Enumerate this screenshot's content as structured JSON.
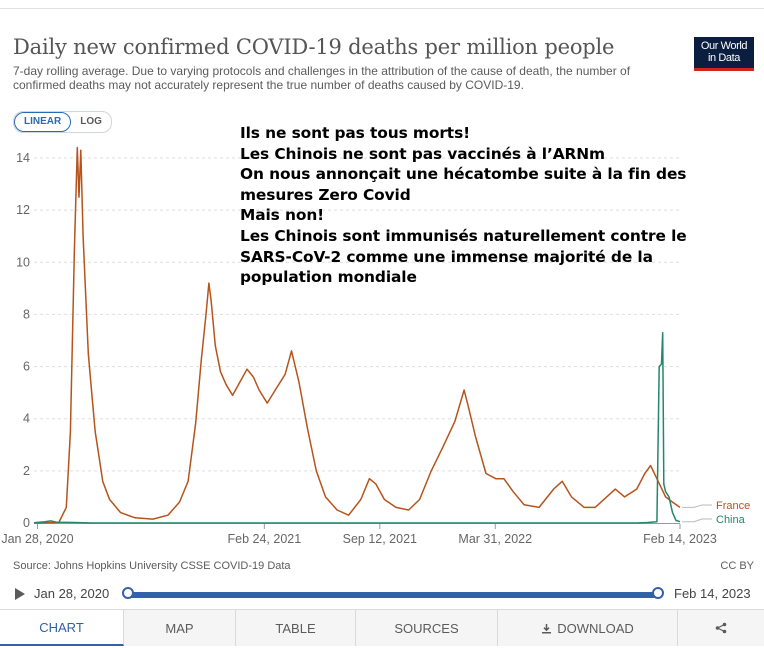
{
  "header": {
    "title": "Daily new confirmed COVID-19 deaths per million people",
    "subtitle": "7-day rolling average. Due to varying protocols and challenges in the attribution of the cause of death, the number of confirmed deaths may not accurately represent the true number of deaths caused by COVID-19.",
    "logo_line1": "Our World",
    "logo_line2": "in Data"
  },
  "scale_toggle": {
    "linear": "LINEAR",
    "log": "LOG",
    "selected": "LINEAR"
  },
  "annotation": [
    "Ils ne sont pas tous morts!",
    "Les Chinois ne sont pas vaccinés à l’ARNm",
    "On nous annonçait une hécatombe suite à la fin des",
    "mesures Zero Covid",
    "Mais non!",
    "Les Chinois sont immunisés naturellement contre le",
    "SARS-CoV-2 comme une immense majorité de la",
    "population mondiale"
  ],
  "chart_data": {
    "type": "line",
    "title": "Daily new confirmed COVID-19 deaths per million people",
    "ylim": [
      0,
      14
    ],
    "y_ticks": [
      0,
      2,
      4,
      6,
      8,
      10,
      12,
      14
    ],
    "xlim": [
      "2020-01-22",
      "2023-02-14"
    ],
    "x_ticks": [
      {
        "date": "2020-01-28",
        "label": "Jan 28, 2020"
      },
      {
        "date": "2021-02-24",
        "label": "Feb 24, 2021"
      },
      {
        "date": "2021-09-12",
        "label": "Sep 12, 2021"
      },
      {
        "date": "2022-03-31",
        "label": "Mar 31, 2022"
      },
      {
        "date": "2023-02-14",
        "label": "Feb 14, 2023"
      }
    ],
    "grid": true,
    "legend": "right-end labels",
    "series": [
      {
        "name": "France",
        "color": "#b5541c",
        "points": [
          [
            "2020-01-22",
            0
          ],
          [
            "2020-03-05",
            0.02
          ],
          [
            "2020-03-18",
            0.6
          ],
          [
            "2020-03-25",
            3.5
          ],
          [
            "2020-04-01",
            10.5
          ],
          [
            "2020-04-06",
            14.4
          ],
          [
            "2020-04-09",
            12.5
          ],
          [
            "2020-04-12",
            14.3
          ],
          [
            "2020-04-16",
            11.0
          ],
          [
            "2020-04-20",
            9.0
          ],
          [
            "2020-04-25",
            6.5
          ],
          [
            "2020-05-01",
            5.0
          ],
          [
            "2020-05-07",
            3.5
          ],
          [
            "2020-05-14",
            2.5
          ],
          [
            "2020-05-20",
            1.6
          ],
          [
            "2020-06-01",
            0.9
          ],
          [
            "2020-06-20",
            0.4
          ],
          [
            "2020-07-15",
            0.2
          ],
          [
            "2020-08-15",
            0.15
          ],
          [
            "2020-09-10",
            0.3
          ],
          [
            "2020-09-30",
            0.8
          ],
          [
            "2020-10-15",
            1.6
          ],
          [
            "2020-10-28",
            3.8
          ],
          [
            "2020-11-07",
            6.3
          ],
          [
            "2020-11-15",
            8.0
          ],
          [
            "2020-11-20",
            9.2
          ],
          [
            "2020-11-24",
            8.5
          ],
          [
            "2020-12-01",
            6.8
          ],
          [
            "2020-12-10",
            5.8
          ],
          [
            "2020-12-20",
            5.3
          ],
          [
            "2020-12-31",
            4.9
          ],
          [
            "2021-01-10",
            5.3
          ],
          [
            "2021-01-25",
            5.9
          ],
          [
            "2021-02-05",
            5.6
          ],
          [
            "2021-02-15",
            5.1
          ],
          [
            "2021-03-01",
            4.6
          ],
          [
            "2021-03-15",
            5.1
          ],
          [
            "2021-04-01",
            5.7
          ],
          [
            "2021-04-12",
            6.6
          ],
          [
            "2021-04-25",
            5.4
          ],
          [
            "2021-05-10",
            3.6
          ],
          [
            "2021-05-25",
            2.0
          ],
          [
            "2021-06-10",
            1.0
          ],
          [
            "2021-06-30",
            0.5
          ],
          [
            "2021-07-20",
            0.3
          ],
          [
            "2021-08-10",
            0.9
          ],
          [
            "2021-08-25",
            1.7
          ],
          [
            "2021-09-05",
            1.5
          ],
          [
            "2021-09-20",
            0.9
          ],
          [
            "2021-10-10",
            0.6
          ],
          [
            "2021-11-01",
            0.5
          ],
          [
            "2021-11-20",
            0.9
          ],
          [
            "2021-12-10",
            2.0
          ],
          [
            "2021-12-30",
            2.9
          ],
          [
            "2022-01-20",
            3.9
          ],
          [
            "2022-02-05",
            5.1
          ],
          [
            "2022-02-12",
            4.5
          ],
          [
            "2022-02-25",
            3.3
          ],
          [
            "2022-03-15",
            1.9
          ],
          [
            "2022-04-01",
            1.7
          ],
          [
            "2022-04-15",
            1.7
          ],
          [
            "2022-05-01",
            1.2
          ],
          [
            "2022-05-20",
            0.7
          ],
          [
            "2022-06-15",
            0.6
          ],
          [
            "2022-07-10",
            1.3
          ],
          [
            "2022-07-25",
            1.6
          ],
          [
            "2022-08-10",
            1.0
          ],
          [
            "2022-09-01",
            0.6
          ],
          [
            "2022-09-20",
            0.6
          ],
          [
            "2022-10-10",
            1.0
          ],
          [
            "2022-10-25",
            1.3
          ],
          [
            "2022-11-10",
            1.0
          ],
          [
            "2022-12-01",
            1.3
          ],
          [
            "2022-12-15",
            1.9
          ],
          [
            "2022-12-25",
            2.2
          ],
          [
            "2023-01-05",
            1.7
          ],
          [
            "2023-01-20",
            1.0
          ],
          [
            "2023-02-01",
            0.8
          ],
          [
            "2023-02-14",
            0.6
          ]
        ]
      },
      {
        "name": "China",
        "color": "#23876b",
        "points": [
          [
            "2020-01-22",
            0.01
          ],
          [
            "2020-02-10",
            0.05
          ],
          [
            "2020-02-20",
            0.08
          ],
          [
            "2020-03-01",
            0.03
          ],
          [
            "2020-04-01",
            0.02
          ],
          [
            "2020-05-01",
            0.0
          ],
          [
            "2022-12-01",
            0.0
          ],
          [
            "2022-12-20",
            0.02
          ],
          [
            "2023-01-05",
            0.05
          ],
          [
            "2023-01-09",
            6.0
          ],
          [
            "2023-01-13",
            6.1
          ],
          [
            "2023-01-15",
            7.3
          ],
          [
            "2023-01-17",
            1.5
          ],
          [
            "2023-01-20",
            1.2
          ],
          [
            "2023-01-26",
            1.0
          ],
          [
            "2023-02-01",
            0.4
          ],
          [
            "2023-02-07",
            0.1
          ],
          [
            "2023-02-14",
            0.05
          ]
        ]
      }
    ]
  },
  "footer": {
    "source": "Source: Johns Hopkins University CSSE COVID-19 Data",
    "license": "CC BY"
  },
  "timeline": {
    "start": "Jan 28, 2020",
    "end": "Feb 14, 2023"
  },
  "tabs": [
    {
      "label": "CHART",
      "active": true
    },
    {
      "label": "MAP"
    },
    {
      "label": "TABLE"
    },
    {
      "label": "SOURCES"
    },
    {
      "label": "DOWNLOAD",
      "icon": "download-icon"
    },
    {
      "label": "",
      "icon": "share-icon"
    }
  ]
}
